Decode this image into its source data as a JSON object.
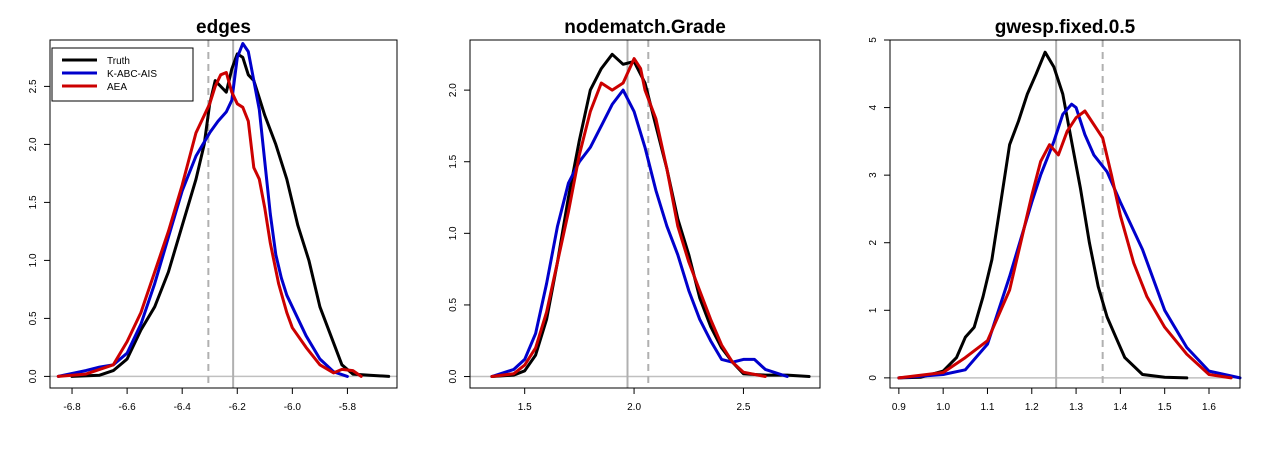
{
  "chart_data": [
    {
      "type": "line",
      "title": "edges",
      "xlabel": "",
      "ylabel": "",
      "xlim": [
        -6.88,
        -5.62
      ],
      "ylim": [
        -0.1,
        2.9
      ],
      "xticks": [
        -6.8,
        -6.6,
        -6.4,
        -6.2,
        -6.0,
        -5.8
      ],
      "xtick_labels": [
        "-6.8",
        "-6.6",
        "-6.4",
        "-6.2",
        "-6.0",
        "-5.8"
      ],
      "yticks": [
        0.0,
        0.5,
        1.0,
        1.5,
        2.0,
        2.5
      ],
      "ytick_labels": [
        "0.0",
        "0.5",
        "1.0",
        "1.5",
        "2.0",
        "2.5"
      ],
      "grid": false,
      "legend": {
        "position": "top-left",
        "entries": [
          {
            "name": "Truth",
            "color": "#000000"
          },
          {
            "name": "K-ABC-AIS",
            "color": "#0000cc"
          },
          {
            "name": "AEA",
            "color": "#cc0000"
          }
        ]
      },
      "vlines": [
        {
          "x": -6.305,
          "style": "dashed",
          "color": "#b0b0b0"
        },
        {
          "x": -6.215,
          "style": "solid",
          "color": "#b0b0b0"
        }
      ],
      "series": [
        {
          "name": "Truth",
          "color": "#000000",
          "x": [
            -6.8,
            -6.7,
            -6.65,
            -6.6,
            -6.55,
            -6.5,
            -6.45,
            -6.4,
            -6.35,
            -6.32,
            -6.3,
            -6.28,
            -6.26,
            -6.24,
            -6.22,
            -6.2,
            -6.18,
            -6.16,
            -6.14,
            -6.12,
            -6.1,
            -6.06,
            -6.02,
            -5.98,
            -5.94,
            -5.9,
            -5.86,
            -5.82,
            -5.78,
            -5.72,
            -5.65
          ],
          "y": [
            0.0,
            0.01,
            0.05,
            0.15,
            0.4,
            0.6,
            0.9,
            1.3,
            1.7,
            2.0,
            2.35,
            2.55,
            2.5,
            2.45,
            2.65,
            2.78,
            2.75,
            2.6,
            2.55,
            2.4,
            2.25,
            2.0,
            1.7,
            1.3,
            1.0,
            0.6,
            0.35,
            0.1,
            0.02,
            0.01,
            0.0
          ]
        },
        {
          "name": "K-ABC-AIS",
          "color": "#0000cc",
          "x": [
            -6.85,
            -6.75,
            -6.7,
            -6.65,
            -6.6,
            -6.55,
            -6.5,
            -6.45,
            -6.4,
            -6.35,
            -6.3,
            -6.27,
            -6.24,
            -6.22,
            -6.2,
            -6.18,
            -6.16,
            -6.14,
            -6.12,
            -6.1,
            -6.08,
            -6.06,
            -6.04,
            -6.02,
            -6.0,
            -5.95,
            -5.9,
            -5.85,
            -5.8
          ],
          "y": [
            0.0,
            0.05,
            0.08,
            0.1,
            0.2,
            0.45,
            0.8,
            1.2,
            1.6,
            1.9,
            2.1,
            2.2,
            2.28,
            2.38,
            2.75,
            2.87,
            2.8,
            2.55,
            2.3,
            1.85,
            1.4,
            1.05,
            0.85,
            0.7,
            0.6,
            0.35,
            0.15,
            0.04,
            0.0
          ]
        },
        {
          "name": "AEA",
          "color": "#cc0000",
          "x": [
            -6.85,
            -6.75,
            -6.7,
            -6.65,
            -6.6,
            -6.55,
            -6.5,
            -6.45,
            -6.4,
            -6.35,
            -6.3,
            -6.28,
            -6.26,
            -6.24,
            -6.22,
            -6.2,
            -6.18,
            -6.16,
            -6.14,
            -6.12,
            -6.1,
            -6.08,
            -6.05,
            -6.02,
            -6.0,
            -5.95,
            -5.9,
            -5.85,
            -5.82,
            -5.78,
            -5.75
          ],
          "y": [
            0.0,
            0.02,
            0.06,
            0.1,
            0.3,
            0.55,
            0.9,
            1.25,
            1.65,
            2.1,
            2.35,
            2.5,
            2.6,
            2.62,
            2.45,
            2.35,
            2.32,
            2.2,
            1.8,
            1.7,
            1.45,
            1.15,
            0.8,
            0.55,
            0.42,
            0.25,
            0.1,
            0.03,
            0.06,
            0.05,
            0.0
          ]
        }
      ]
    },
    {
      "type": "line",
      "title": "nodematch.Grade",
      "xlabel": "",
      "ylabel": "",
      "xlim": [
        1.25,
        2.85
      ],
      "ylim": [
        -0.08,
        2.35
      ],
      "xticks": [
        1.5,
        2.0,
        2.5
      ],
      "xtick_labels": [
        "1.5",
        "2.0",
        "2.5"
      ],
      "yticks": [
        0.0,
        0.5,
        1.0,
        1.5,
        2.0
      ],
      "ytick_labels": [
        "0.0",
        "0.5",
        "1.0",
        "1.5",
        "2.0"
      ],
      "grid": false,
      "vlines": [
        {
          "x": 1.97,
          "style": "solid",
          "color": "#b0b0b0"
        },
        {
          "x": 2.065,
          "style": "dashed",
          "color": "#b0b0b0"
        }
      ],
      "series": [
        {
          "name": "Truth",
          "color": "#000000",
          "x": [
            1.35,
            1.45,
            1.5,
            1.55,
            1.6,
            1.65,
            1.7,
            1.75,
            1.8,
            1.85,
            1.9,
            1.95,
            2.0,
            2.05,
            2.1,
            2.15,
            2.2,
            2.25,
            2.3,
            2.35,
            2.4,
            2.45,
            2.5,
            2.6,
            2.7,
            2.8
          ],
          "y": [
            0.0,
            0.01,
            0.04,
            0.15,
            0.4,
            0.8,
            1.25,
            1.65,
            2.0,
            2.15,
            2.25,
            2.18,
            2.2,
            2.05,
            1.75,
            1.45,
            1.1,
            0.85,
            0.55,
            0.35,
            0.2,
            0.1,
            0.02,
            0.01,
            0.01,
            0.0
          ]
        },
        {
          "name": "K-ABC-AIS",
          "color": "#0000cc",
          "x": [
            1.35,
            1.45,
            1.5,
            1.55,
            1.6,
            1.65,
            1.7,
            1.75,
            1.8,
            1.85,
            1.9,
            1.95,
            2.0,
            2.05,
            2.1,
            2.15,
            2.2,
            2.25,
            2.3,
            2.35,
            2.4,
            2.45,
            2.5,
            2.55,
            2.6,
            2.7
          ],
          "y": [
            0.0,
            0.05,
            0.12,
            0.3,
            0.65,
            1.05,
            1.35,
            1.5,
            1.6,
            1.75,
            1.9,
            2.0,
            1.85,
            1.6,
            1.3,
            1.05,
            0.85,
            0.6,
            0.4,
            0.25,
            0.12,
            0.1,
            0.12,
            0.12,
            0.05,
            0.0
          ]
        },
        {
          "name": "AEA",
          "color": "#cc0000",
          "x": [
            1.35,
            1.45,
            1.5,
            1.55,
            1.6,
            1.65,
            1.7,
            1.75,
            1.8,
            1.85,
            1.9,
            1.95,
            2.0,
            2.03,
            2.05,
            2.1,
            2.15,
            2.2,
            2.25,
            2.3,
            2.35,
            2.4,
            2.45,
            2.5,
            2.6
          ],
          "y": [
            0.0,
            0.02,
            0.08,
            0.2,
            0.45,
            0.8,
            1.15,
            1.55,
            1.85,
            2.05,
            2.0,
            2.05,
            2.22,
            2.15,
            2.0,
            1.8,
            1.45,
            1.05,
            0.8,
            0.6,
            0.4,
            0.22,
            0.1,
            0.03,
            0.0
          ]
        }
      ]
    },
    {
      "type": "line",
      "title": "gwesp.fixed.0.5",
      "xlabel": "",
      "ylabel": "",
      "xlim": [
        0.88,
        1.67
      ],
      "ylim": [
        -0.15,
        5.0
      ],
      "xticks": [
        0.9,
        1.0,
        1.1,
        1.2,
        1.3,
        1.4,
        1.5,
        1.6
      ],
      "xtick_labels": [
        "0.9",
        "1.0",
        "1.1",
        "1.2",
        "1.3",
        "1.4",
        "1.5",
        "1.6"
      ],
      "yticks": [
        0,
        1,
        2,
        3,
        4,
        5
      ],
      "ytick_labels": [
        "0",
        "1",
        "2",
        "3",
        "4",
        "5"
      ],
      "grid": false,
      "vlines": [
        {
          "x": 1.255,
          "style": "solid",
          "color": "#b0b0b0"
        },
        {
          "x": 1.36,
          "style": "dashed",
          "color": "#b0b0b0"
        }
      ],
      "series": [
        {
          "name": "Truth",
          "color": "#000000",
          "x": [
            0.9,
            0.95,
            1.0,
            1.03,
            1.05,
            1.07,
            1.09,
            1.11,
            1.13,
            1.15,
            1.17,
            1.19,
            1.21,
            1.23,
            1.25,
            1.27,
            1.29,
            1.31,
            1.33,
            1.35,
            1.37,
            1.39,
            1.41,
            1.45,
            1.5,
            1.55
          ],
          "y": [
            0.0,
            0.01,
            0.1,
            0.3,
            0.6,
            0.75,
            1.2,
            1.75,
            2.6,
            3.45,
            3.8,
            4.2,
            4.5,
            4.82,
            4.6,
            4.2,
            3.5,
            2.8,
            2.0,
            1.35,
            0.9,
            0.6,
            0.3,
            0.05,
            0.01,
            0.0
          ]
        },
        {
          "name": "K-ABC-AIS",
          "color": "#0000cc",
          "x": [
            0.9,
            1.0,
            1.05,
            1.1,
            1.15,
            1.2,
            1.22,
            1.25,
            1.27,
            1.29,
            1.3,
            1.32,
            1.34,
            1.37,
            1.4,
            1.45,
            1.5,
            1.55,
            1.6,
            1.67
          ],
          "y": [
            0.0,
            0.05,
            0.12,
            0.5,
            1.5,
            2.6,
            3.0,
            3.5,
            3.9,
            4.05,
            4.0,
            3.6,
            3.3,
            3.05,
            2.6,
            1.9,
            1.0,
            0.45,
            0.1,
            0.0
          ]
        },
        {
          "name": "AEA",
          "color": "#cc0000",
          "x": [
            0.9,
            1.0,
            1.05,
            1.1,
            1.15,
            1.2,
            1.22,
            1.24,
            1.26,
            1.28,
            1.3,
            1.32,
            1.34,
            1.36,
            1.38,
            1.4,
            1.43,
            1.46,
            1.5,
            1.55,
            1.6,
            1.65
          ],
          "y": [
            0.0,
            0.08,
            0.3,
            0.55,
            1.3,
            2.7,
            3.2,
            3.45,
            3.3,
            3.65,
            3.85,
            3.95,
            3.75,
            3.55,
            3.0,
            2.4,
            1.7,
            1.2,
            0.75,
            0.35,
            0.05,
            0.0
          ]
        }
      ]
    }
  ]
}
